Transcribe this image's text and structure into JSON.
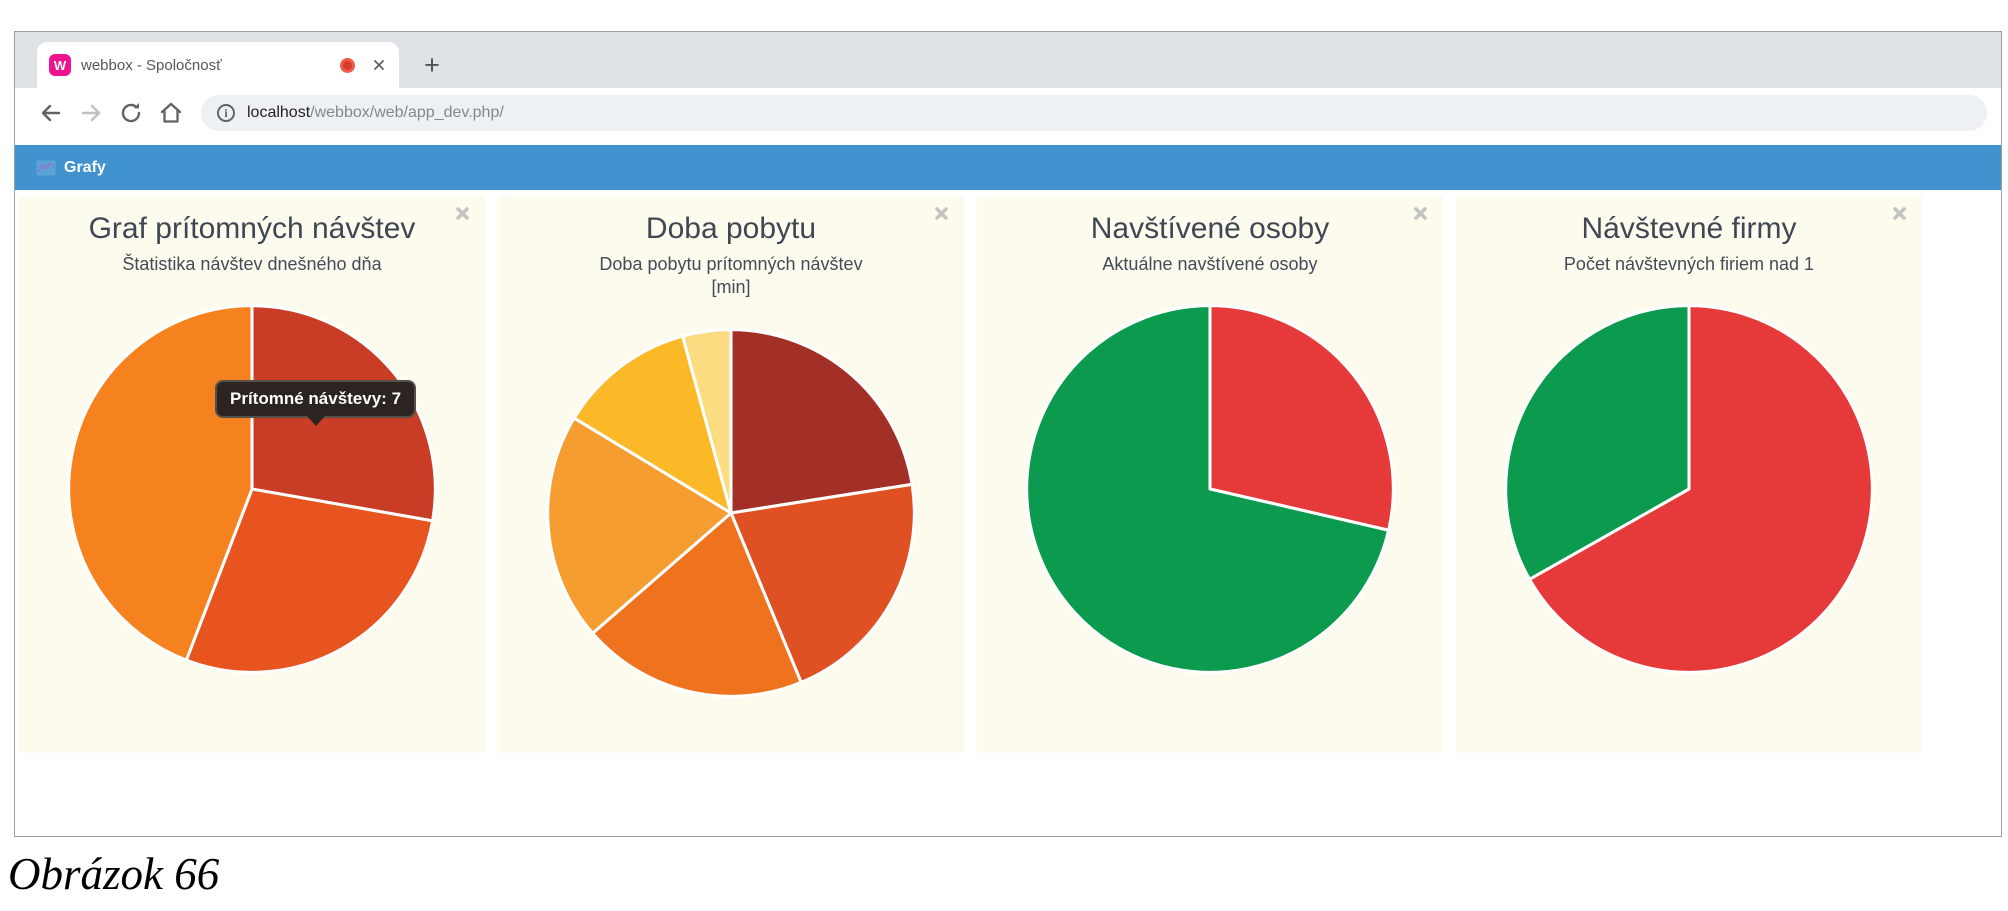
{
  "browser": {
    "tab_title": "webbox - Spoločnosť",
    "url_host": "localhost",
    "url_path": "/webbox/web/app_dev.php/"
  },
  "icons": {
    "close": "×",
    "plus": "+",
    "back": "←",
    "forward": "→",
    "home": "⌂",
    "info": "i"
  },
  "app_bar": {
    "label": "Grafy",
    "color": "#4193d0"
  },
  "panels": [
    {
      "title": "Graf prítomných návštev",
      "subtitle": "Štatistika návštev dnešného dňa"
    },
    {
      "title": "Doba pobytu",
      "subtitle": "Doba pobytu prítomných návštev\n[min]"
    },
    {
      "title": "Navštívené osoby",
      "subtitle": "Aktuálne navštívené osoby"
    },
    {
      "title": "Návštevné firmy",
      "subtitle": "Počet návštevných firiem nad 1"
    }
  ],
  "tooltip": {
    "label": "Prítomné návštevy:",
    "value": "7"
  },
  "chart_data": [
    {
      "type": "pie",
      "title": "Graf prítomných návštev",
      "subtitle": "Štatistika návštev dnešného dňa",
      "start": "top",
      "direction": "clockwise",
      "hover_tooltip": {
        "label": "Prítomné návštevy",
        "value": 7,
        "slice_index": 0
      },
      "slices": [
        {
          "color": "#c93d27",
          "degrees": 100,
          "percent": 27.8
        },
        {
          "color": "#e75420",
          "degrees": 101,
          "percent": 28.0
        },
        {
          "color": "#f5821f",
          "degrees": 159,
          "percent": 44.2
        }
      ]
    },
    {
      "type": "pie",
      "title": "Doba pobytu",
      "subtitle": "Doba pobytu prítomných návštev [min]",
      "start": "top",
      "direction": "clockwise",
      "slices": [
        {
          "color": "#a33026",
          "degrees": 81.0,
          "percent": 22.5
        },
        {
          "color": "#df5022",
          "degrees": 76.5,
          "percent": 21.3
        },
        {
          "color": "#ef721f",
          "degrees": 71.5,
          "percent": 19.9
        },
        {
          "color": "#f59d31",
          "degrees": 72.2,
          "percent": 20.0
        },
        {
          "color": "#fbb927",
          "degrees": 43.5,
          "percent": 12.1
        },
        {
          "color": "#fbdc80",
          "degrees": 15.3,
          "percent": 4.2
        }
      ]
    },
    {
      "type": "pie",
      "title": "Navštívené osoby",
      "subtitle": "Aktuálne navštívené osoby",
      "start": "top",
      "direction": "clockwise",
      "slices": [
        {
          "color": "#e63a3a",
          "degrees": 103.0,
          "percent": 28.6
        },
        {
          "color": "#0c9a4e",
          "degrees": 257.0,
          "percent": 71.4
        }
      ]
    },
    {
      "type": "pie",
      "title": "Návštevné firmy",
      "subtitle": "Počet návštevných firiem nad 1",
      "start": "top",
      "direction": "clockwise",
      "slices": [
        {
          "color": "#e63a3a",
          "degrees": 240.5,
          "percent": 66.8
        },
        {
          "color": "#0c9a4e",
          "degrees": 119.5,
          "percent": 33.2
        }
      ]
    }
  ],
  "caption": "Obrázok 66"
}
